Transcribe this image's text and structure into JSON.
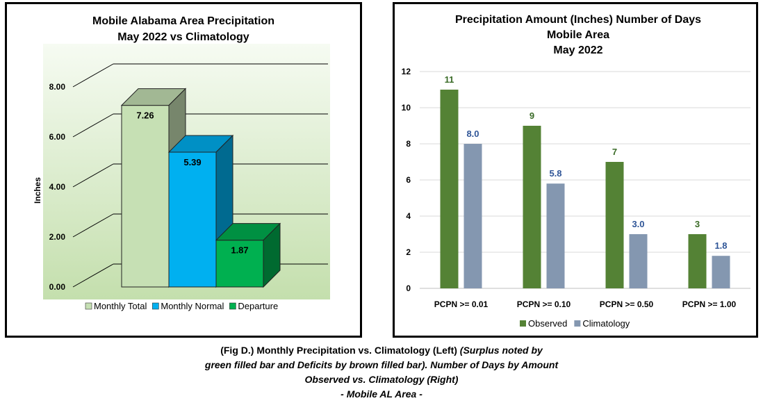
{
  "chart_data": [
    {
      "type": "bar",
      "title": "Mobile Alabama Area Precipitation",
      "subtitle": "May 2022 vs Climatology",
      "ylabel": "Inches",
      "ylim": [
        0,
        8
      ],
      "yticks": [
        "0.00",
        "2.00",
        "4.00",
        "6.00",
        "8.00"
      ],
      "three_d": true,
      "legend_position": "bottom",
      "series": [
        {
          "name": "Monthly Total",
          "value": 7.26,
          "label": "7.26",
          "color": "#c6e0b4"
        },
        {
          "name": "Monthly Normal",
          "value": 5.39,
          "label": "5.39",
          "color": "#00b0f0"
        },
        {
          "name": "Departure",
          "value": 1.87,
          "label": "1.87",
          "color": "#00b050"
        }
      ]
    },
    {
      "type": "bar",
      "title_lines": [
        "Precipitation Amount (Inches) Number of Days",
        "Mobile Area",
        "May 2022"
      ],
      "categories": [
        "PCPN >= 0.01",
        "PCPN >= 0.10",
        "PCPN >= 0.50",
        "PCPN >= 1.00"
      ],
      "ylim": [
        0,
        12
      ],
      "yticks": [
        "0",
        "2",
        "4",
        "6",
        "8",
        "10",
        "12"
      ],
      "grid": true,
      "legend_position": "bottom",
      "series": [
        {
          "name": "Observed",
          "values": [
            11,
            9,
            7,
            3
          ],
          "labels": [
            "11",
            "9",
            "7",
            "3"
          ],
          "color": "#548235"
        },
        {
          "name": "Climatology",
          "values": [
            8.0,
            5.8,
            3.0,
            1.8
          ],
          "labels": [
            "8.0",
            "5.8",
            "3.0",
            "1.8"
          ],
          "color": "#8497b0"
        }
      ]
    }
  ],
  "caption": {
    "part1": "(Fig D.) Monthly Precipitation vs. Climatology (Left) ",
    "part2": "(Surplus noted by",
    "line2": "green filled bar and Deficits by brown filled bar). Number of Days by Amount",
    "line3": "Observed vs. Climatology (Right)",
    "line4": "- Mobile AL Area -"
  }
}
